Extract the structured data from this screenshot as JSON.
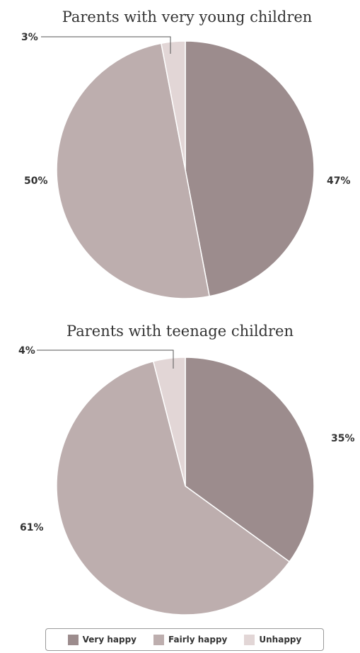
{
  "chart_data": [
    {
      "type": "pie",
      "title": "Parents with very young children",
      "labels": [
        "Very happy",
        "Fairly happy",
        "Unhappy"
      ],
      "values": [
        47,
        50,
        3
      ],
      "value_labels": [
        "47%",
        "50%",
        "3%"
      ]
    },
    {
      "type": "pie",
      "title": "Parents with teenage children",
      "labels": [
        "Very happy",
        "Fairly happy",
        "Unhappy"
      ],
      "values": [
        35,
        61,
        4
      ],
      "value_labels": [
        "35%",
        "61%",
        "4%"
      ]
    }
  ],
  "legend": {
    "placement": "bottom-center",
    "items": [
      {
        "label": "Very happy",
        "color": "#9c8c8d"
      },
      {
        "label": "Fairly happy",
        "color": "#bdaeae"
      },
      {
        "label": "Unhappy",
        "color": "#e2d6d6"
      }
    ]
  }
}
